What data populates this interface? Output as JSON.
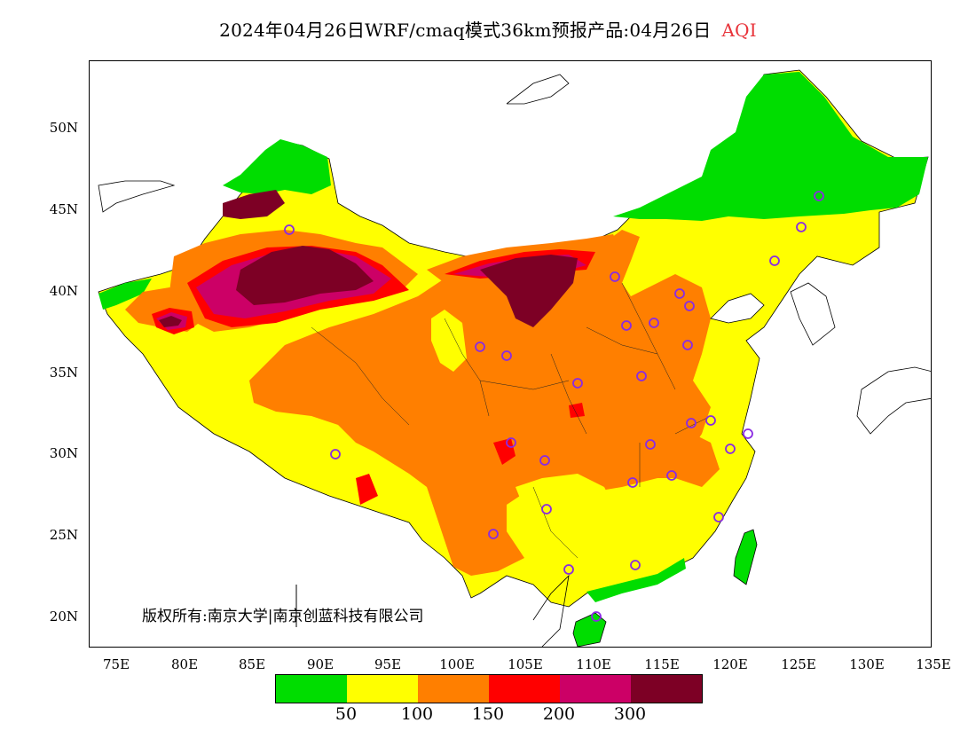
{
  "header": {
    "title": "2024年04月26日WRF/cmaq模式36km预报产品:04月26日",
    "variable": "AQI",
    "variable_color": "#e8333a"
  },
  "axes": {
    "y_ticks": [
      "50N",
      "45N",
      "40N",
      "35N",
      "30N",
      "25N",
      "20N"
    ],
    "x_ticks": [
      "75E",
      "80E",
      "85E",
      "90E",
      "95E",
      "100E",
      "105E",
      "110E",
      "115E",
      "120E",
      "125E",
      "130E",
      "135E"
    ]
  },
  "copyright": "版权所有:南京大学|南京创蓝科技有限公司",
  "legend": {
    "colors": [
      "#00dd00",
      "#ffff00",
      "#ff7f00",
      "#ff0000",
      "#cc0066",
      "#7d0025"
    ],
    "labels": [
      "50",
      "100",
      "150",
      "200",
      "300"
    ]
  }
}
